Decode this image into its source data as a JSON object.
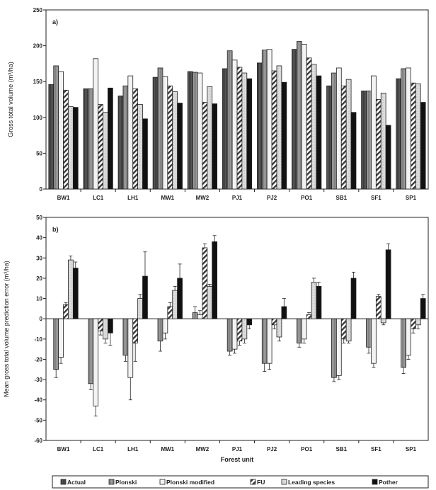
{
  "chart_data": [
    {
      "type": "bar",
      "panel_label": "a)",
      "ylabel": "Gross total volume (m³/ha)",
      "ylim": [
        0,
        250
      ],
      "yticks": [
        0,
        50,
        100,
        150,
        200,
        250
      ],
      "grid": false,
      "categories": [
        "BW1",
        "LC1",
        "LH1",
        "MW1",
        "MW2",
        "PJ1",
        "PJ2",
        "PO1",
        "SB1",
        "SF1",
        "SP1"
      ],
      "series": [
        {
          "name": "Actual",
          "values": [
            146,
            140,
            130,
            156,
            164,
            168,
            176,
            195,
            144,
            137,
            154
          ]
        },
        {
          "name": "Plonski",
          "values": [
            172,
            140,
            144,
            169,
            163,
            193,
            194,
            206,
            162,
            137,
            168
          ]
        },
        {
          "name": "Plonski modified",
          "values": [
            164,
            182,
            158,
            157,
            162,
            180,
            195,
            202,
            169,
            158,
            169
          ]
        },
        {
          "name": "FU",
          "values": [
            138,
            118,
            140,
            144,
            121,
            170,
            165,
            183,
            144,
            125,
            148
          ]
        },
        {
          "name": "Leading species",
          "values": [
            115,
            107,
            118,
            136,
            143,
            162,
            172,
            174,
            153,
            134,
            147
          ]
        },
        {
          "name": "Pother",
          "values": [
            114,
            141,
            98,
            120,
            119,
            154,
            149,
            158,
            107,
            89,
            121
          ]
        }
      ]
    },
    {
      "type": "bar",
      "panel_label": "b)",
      "xlabel": "Forest unit",
      "ylabel": "Mean gross total volume prediction error (m³/ha)",
      "ylim": [
        -60,
        50
      ],
      "yticks": [
        -60,
        -50,
        -40,
        -30,
        -20,
        -10,
        0,
        10,
        20,
        30,
        40,
        50
      ],
      "grid": false,
      "categories": [
        "BW1",
        "LC1",
        "LH1",
        "MW1",
        "MW2",
        "PJ1",
        "PJ2",
        "PO1",
        "SB1",
        "SF1",
        "SP1"
      ],
      "series": [
        {
          "name": "Actual",
          "values": [
            0,
            0,
            0,
            0,
            0,
            0,
            0,
            0,
            0,
            0,
            0
          ]
        },
        {
          "name": "Plonski",
          "values": [
            -25,
            -32,
            -18,
            -11,
            3,
            -16,
            -22,
            -12,
            -29,
            -14,
            -24
          ],
          "errors": [
            4,
            3,
            3,
            5,
            3,
            2,
            4,
            2,
            2,
            3,
            3
          ]
        },
        {
          "name": "Plonski modified",
          "values": [
            -19,
            -43,
            -29,
            -7,
            2,
            -15,
            -22,
            -10,
            -28,
            -22,
            -18
          ],
          "errors": [
            3,
            5,
            11,
            3,
            2,
            2,
            3,
            2,
            2,
            2,
            2
          ]
        },
        {
          "name": "FU",
          "values": [
            7,
            -6,
            -12,
            6,
            35,
            -11,
            -3,
            2,
            -10,
            11,
            -5
          ],
          "errors": [
            1,
            2,
            9,
            2,
            2,
            2,
            2,
            1,
            2,
            1,
            2
          ]
        },
        {
          "name": "Leading species",
          "values": [
            29,
            -10,
            10,
            14,
            16,
            -10,
            -9,
            18,
            -11,
            -2,
            -3
          ],
          "errors": [
            2,
            2,
            2,
            2,
            1,
            2,
            2,
            2,
            1,
            1,
            2
          ]
        },
        {
          "name": "Pother",
          "values": [
            25,
            -7,
            21,
            20,
            38,
            -3,
            6,
            16,
            20,
            34,
            10
          ],
          "errors": [
            3,
            6,
            12,
            7,
            3,
            2,
            4,
            2,
            3,
            3,
            2
          ]
        }
      ]
    }
  ],
  "legend": {
    "placement": "bottom",
    "items": [
      {
        "label": "Actual",
        "pattern": "actual"
      },
      {
        "label": "Plonski",
        "pattern": "plonski"
      },
      {
        "label": "Plonski modified",
        "pattern": "plonski-mod"
      },
      {
        "label": "FU",
        "pattern": "fu"
      },
      {
        "label": "Leading species",
        "pattern": "leading"
      },
      {
        "label": "Pother",
        "pattern": "pother"
      }
    ]
  }
}
